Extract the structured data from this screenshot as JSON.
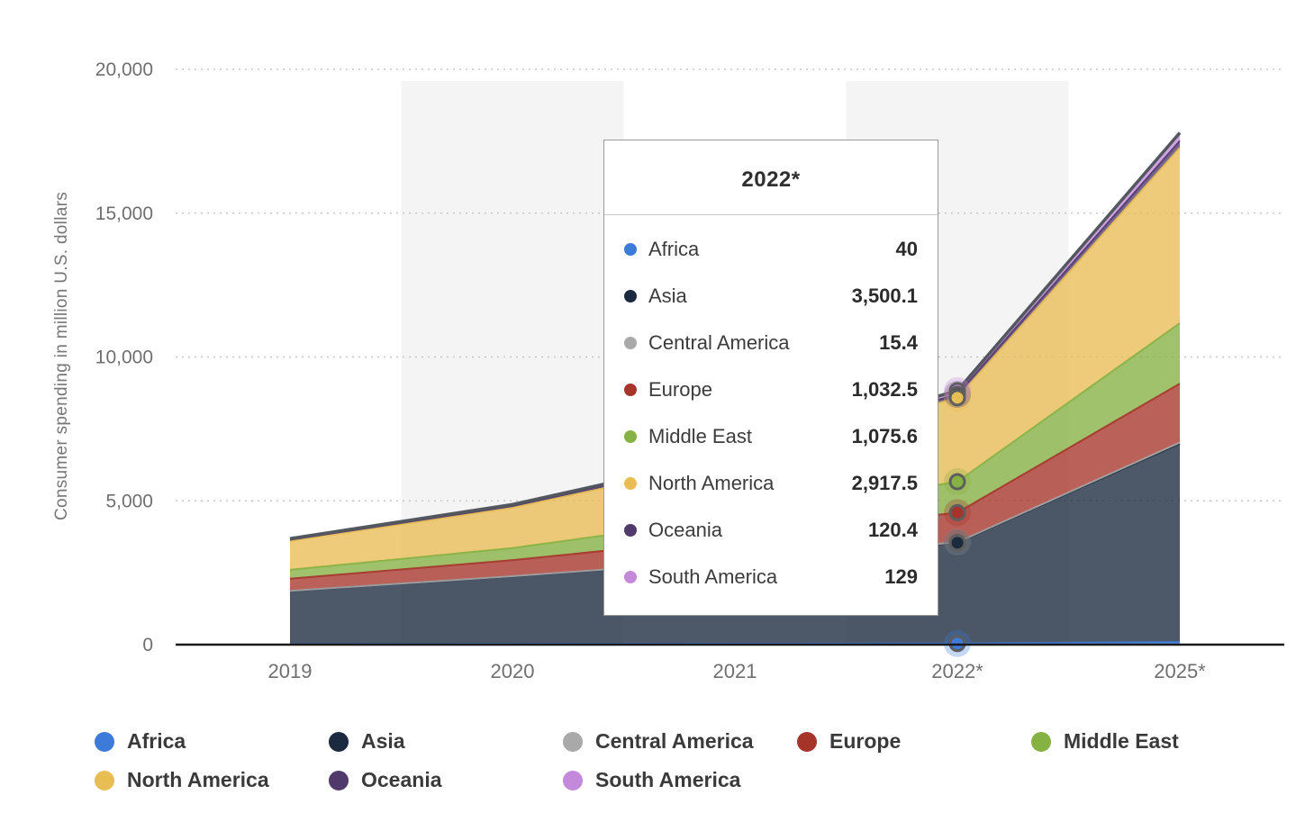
{
  "chart_data": {
    "type": "area",
    "stacked": true,
    "title": "",
    "ylabel": "Consumer spending in million U.S. dollars",
    "categories": [
      "2019",
      "2020",
      "2021",
      "2022*",
      "2025*"
    ],
    "series": [
      {
        "name": "Africa",
        "color": "#3D7BDB",
        "values": [
          15,
          20,
          30,
          40,
          90
        ]
      },
      {
        "name": "Asia",
        "color": "#1B2A3E",
        "values": [
          1850,
          2350,
          2900,
          3500.1,
          6900
        ]
      },
      {
        "name": "Central America",
        "color": "#A9A9A9",
        "values": [
          6,
          8,
          12,
          15.4,
          35
        ]
      },
      {
        "name": "Europe",
        "color": "#A6342A",
        "values": [
          420,
          560,
          780,
          1032.5,
          2050
        ]
      },
      {
        "name": "Middle East",
        "color": "#86B143",
        "values": [
          310,
          420,
          700,
          1075.6,
          2100
        ]
      },
      {
        "name": "North America",
        "color": "#E8BD54",
        "values": [
          1000,
          1400,
          2000,
          2917.5,
          6100
        ]
      },
      {
        "name": "Oceania",
        "color": "#503A6B",
        "values": [
          45,
          60,
          85,
          120.4,
          240
        ]
      },
      {
        "name": "South America",
        "color": "#C489DB",
        "values": [
          40,
          55,
          85,
          129,
          280
        ]
      }
    ],
    "ylim": [
      0,
      20000
    ],
    "yticks": [
      {
        "value": 0,
        "label": "0"
      },
      {
        "value": 5000,
        "label": "5,000"
      },
      {
        "value": 10000,
        "label": "10,000"
      },
      {
        "value": 15000,
        "label": "15,000"
      },
      {
        "value": 20000,
        "label": "20,000"
      }
    ],
    "grid": "dotted-horizontal",
    "legend_position": "bottom",
    "highlight_bands": [
      1,
      3
    ],
    "marker_category_index": 3
  },
  "tooltip": {
    "title": "2022*",
    "rows": [
      {
        "label": "Africa",
        "value": "40"
      },
      {
        "label": "Asia",
        "value": "3,500.1"
      },
      {
        "label": "Central America",
        "value": "15.4"
      },
      {
        "label": "Europe",
        "value": "1,032.5"
      },
      {
        "label": "Middle East",
        "value": "1,075.6"
      },
      {
        "label": "North America",
        "value": "2,917.5"
      },
      {
        "label": "Oceania",
        "value": "120.4"
      },
      {
        "label": "South America",
        "value": "129"
      }
    ]
  },
  "legend": {
    "items": [
      {
        "label": "Africa"
      },
      {
        "label": "Asia"
      },
      {
        "label": "Central America"
      },
      {
        "label": "Europe"
      },
      {
        "label": "Middle East"
      },
      {
        "label": "North America"
      },
      {
        "label": "Oceania"
      },
      {
        "label": "South America"
      }
    ]
  }
}
